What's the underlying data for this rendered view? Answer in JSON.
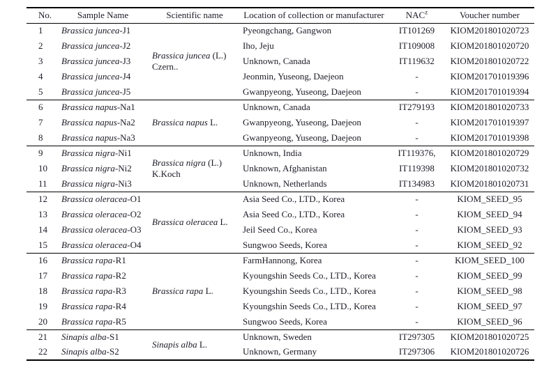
{
  "table": {
    "headers": {
      "no": "No.",
      "sample": "Sample Name",
      "scientific": "Scientific name",
      "location": "Location of collection or manufacturer",
      "nac": "NAC",
      "nac_sup": "z",
      "voucher": "Voucher number"
    },
    "groups": [
      {
        "scientific_species": "Brassica juncea",
        "scientific_authority": " (L.) Czern..",
        "rows": [
          {
            "no": "1",
            "species": "Brassica juncea",
            "suffix": "-J1",
            "location": "Pyeongchang, Gangwon",
            "nac": "IT101269",
            "voucher": "KIOM201801020723"
          },
          {
            "no": "2",
            "species": "Brassica juncea",
            "suffix": "-J2",
            "location": "Iho, Jeju",
            "nac": "IT109008",
            "voucher": "KIOM201801020720"
          },
          {
            "no": "3",
            "species": "Brassica juncea",
            "suffix": "-J3",
            "location": "Unknown, Canada",
            "nac": "IT119632",
            "voucher": "KIOM201801020722"
          },
          {
            "no": "4",
            "species": "Brassica juncea",
            "suffix": "-J4",
            "location": "Jeonmin, Yuseong, Daejeon",
            "nac": "-",
            "voucher": "KIOM201701019396"
          },
          {
            "no": "5",
            "species": "Brassica juncea",
            "suffix": "-J5",
            "location": "Gwanpyeong, Yuseong, Daejeon",
            "nac": "-",
            "voucher": "KIOM201701019394"
          }
        ]
      },
      {
        "scientific_species": "Brassica napus",
        "scientific_authority": " L.",
        "rows": [
          {
            "no": "6",
            "species": "Brassica napus",
            "suffix": "-Na1",
            "location": "Unknown, Canada",
            "nac": "IT279193",
            "voucher": "KIOM201801020733"
          },
          {
            "no": "7",
            "species": "Brassica napus",
            "suffix": "-Na2",
            "location": "Gwanpyeong, Yuseong, Daejeon",
            "nac": "-",
            "voucher": "KIOM201701019397"
          },
          {
            "no": "8",
            "species": "Brassica napus",
            "suffix": "-Na3",
            "location": "Gwanpyeong, Yuseong, Daejeon",
            "nac": "-",
            "voucher": "KIOM201701019398"
          }
        ]
      },
      {
        "scientific_species": "Brassica nigra",
        "scientific_authority": " (L.) K.Koch",
        "rows": [
          {
            "no": "9",
            "species": "Brassica nigra",
            "suffix": "-Ni1",
            "location": "Unknown, India",
            "nac": "IT119376,",
            "voucher": "KIOM201801020729"
          },
          {
            "no": "10",
            "species": "Brassica nigra",
            "suffix": "-Ni2",
            "location": "Unknown, Afghanistan",
            "nac": "IT119398",
            "voucher": "KIOM201801020732"
          },
          {
            "no": "11",
            "species": "Brassica nigra",
            "suffix": "-Ni3",
            "location": "Unknown, Netherlands",
            "nac": "IT134983",
            "voucher": "KIOM201801020731"
          }
        ]
      },
      {
        "scientific_species": "Brassica oleracea",
        "scientific_authority": " L.",
        "rows": [
          {
            "no": "12",
            "species": "Brassica oleracea",
            "suffix": "-O1",
            "location": "Asia Seed Co., LTD., Korea",
            "nac": "-",
            "voucher": "KIOM_SEED_95"
          },
          {
            "no": "13",
            "species": "Brassica oleracea",
            "suffix": "-O2",
            "location": "Asia Seed Co., LTD., Korea",
            "nac": "-",
            "voucher": "KIOM_SEED_94"
          },
          {
            "no": "14",
            "species": "Brassica oleracea",
            "suffix": "-O3",
            "location": "Jeil Seed Co., Korea",
            "nac": "-",
            "voucher": "KIOM_SEED_93"
          },
          {
            "no": "15",
            "species": "Brassica oleracea",
            "suffix": "-O4",
            "location": "Sungwoo Seeds, Korea",
            "nac": "-",
            "voucher": "KIOM_SEED_92"
          }
        ]
      },
      {
        "scientific_species": "Brassica rapa",
        "scientific_authority": " L.",
        "rows": [
          {
            "no": "16",
            "species": "Brassica rapa",
            "suffix": "-R1",
            "location": "FarmHannong, Korea",
            "nac": "-",
            "voucher": "KIOM_SEED_100"
          },
          {
            "no": "17",
            "species": "Brassica rapa",
            "suffix": "-R2",
            "location": "Kyoungshin Seeds Co., LTD., Korea",
            "nac": "-",
            "voucher": "KIOM_SEED_99"
          },
          {
            "no": "18",
            "species": "Brassica rapa",
            "suffix": "-R3",
            "location": "Kyoungshin Seeds Co., LTD., Korea",
            "nac": "-",
            "voucher": "KIOM_SEED_98"
          },
          {
            "no": "19",
            "species": "Brassica rapa",
            "suffix": "-R4",
            "location": "Kyoungshin Seeds Co., LTD., Korea",
            "nac": "-",
            "voucher": "KIOM_SEED_97"
          },
          {
            "no": "20",
            "species": "Brassica rapa",
            "suffix": "-R5",
            "location": "Sungwoo Seeds, Korea",
            "nac": "-",
            "voucher": "KIOM_SEED_96"
          }
        ]
      },
      {
        "scientific_species": "Sinapis alba",
        "scientific_authority": " L.",
        "rows": [
          {
            "no": "21",
            "species": "Sinapis alba",
            "suffix": "-S1",
            "location": "Unknown, Sweden",
            "nac": "IT297305",
            "voucher": "KIOM201801020725"
          },
          {
            "no": "22",
            "species": "Sinapis alba",
            "suffix": "-S2",
            "location": "Unknown, Germany",
            "nac": "IT297306",
            "voucher": "KIOM201801020726"
          }
        ]
      }
    ]
  }
}
